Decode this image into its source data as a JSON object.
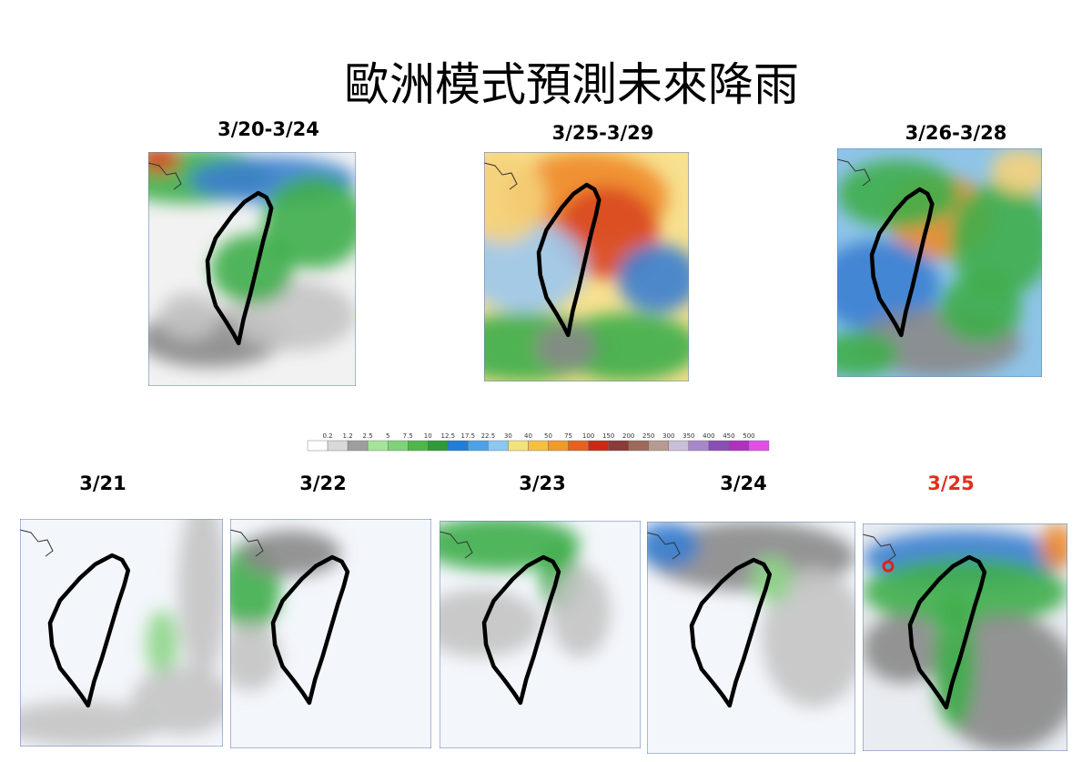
{
  "title": "歐洲模式預測未來降雨",
  "period_maps": [
    {
      "label": "3/20-3/24"
    },
    {
      "label": "3/25-3/29"
    },
    {
      "label": "3/26-3/28"
    }
  ],
  "legend": {
    "ticks": [
      "0.2",
      "1.2",
      "2.5",
      "5",
      "7.5",
      "10",
      "12.5",
      "17.5",
      "22.5",
      "30",
      "40",
      "50",
      "75",
      "100",
      "150",
      "200",
      "250",
      "300",
      "350",
      "400",
      "450",
      "500"
    ]
  },
  "daily_maps": [
    {
      "label": "3/21"
    },
    {
      "label": "3/22"
    },
    {
      "label": "3/23"
    },
    {
      "label": "3/24"
    },
    {
      "label": "3/25"
    }
  ]
}
